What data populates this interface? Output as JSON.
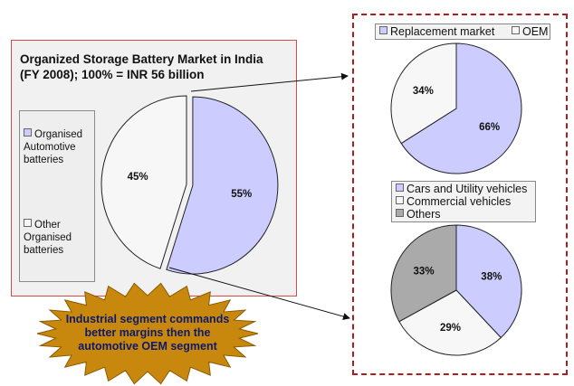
{
  "title_lines": [
    "Organized Storage Battery Market in India",
    "(FY 2008); 100% = INR 56 billion"
  ],
  "callout": {
    "lines": [
      "Industrial segment commands",
      "better margins then the",
      "automotive OEM segment"
    ],
    "fill": "#c8880e"
  },
  "colors": {
    "lavender": "#ccccff",
    "white": "#f7f7f7",
    "gray": "#aaaaaa",
    "border_red": "#b01c1c"
  },
  "chart_data": [
    {
      "type": "pie",
      "slices": [
        {
          "label": "Organised Automotive batteries",
          "legend_lines": [
            "Organised",
            "Automotive",
            "batteries"
          ],
          "value": 55,
          "label_text": "55%",
          "color": "#ccccff"
        },
        {
          "label": "Other Organised batteries",
          "legend_lines": [
            "Other",
            "Organised",
            "batteries"
          ],
          "value": 45,
          "label_text": "45%",
          "color": "#f7f7f7"
        }
      ],
      "legend_placement": "left"
    },
    {
      "type": "pie",
      "slices": [
        {
          "label": "Replacement market",
          "value": 66,
          "label_text": "66%",
          "color": "#ccccff"
        },
        {
          "label": "OEM",
          "value": 34,
          "label_text": "34%",
          "color": "#f7f7f7"
        }
      ],
      "legend_placement": "top"
    },
    {
      "type": "pie",
      "slices": [
        {
          "label": "Cars and Utility vehicles",
          "value": 38,
          "label_text": "38%",
          "color": "#ccccff"
        },
        {
          "label": "Commercial vehicles",
          "value": 29,
          "label_text": "29%",
          "color": "#f7f7f7"
        },
        {
          "label": "Others",
          "value": 33,
          "label_text": "33%",
          "color": "#aaaaaa"
        }
      ],
      "legend_placement": "top"
    }
  ]
}
